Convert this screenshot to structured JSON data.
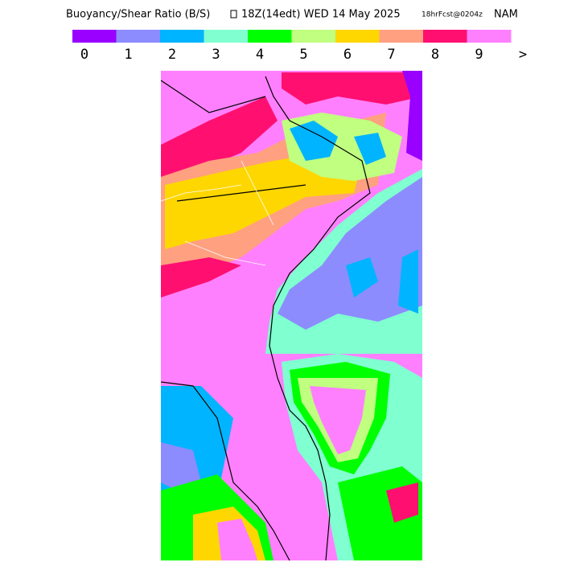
{
  "header": {
    "title": "Buoyancy/Shear Ratio (B/S)",
    "valid": "18Z(14edt) WED 14 May 2025",
    "forecast": "18hrFcst@0204z",
    "model": "NAM"
  },
  "legend": {
    "colors": [
      "#9900ff",
      "#8c8cff",
      "#00b4ff",
      "#80ffd0",
      "#00ff00",
      "#c0ff80",
      "#ffd700",
      "#ffa080",
      "#ff1070",
      "#ff80ff"
    ],
    "labels": [
      "0",
      "1",
      "2",
      "3",
      "4",
      "5",
      "6",
      "7",
      "8",
      "9",
      ">"
    ]
  }
}
